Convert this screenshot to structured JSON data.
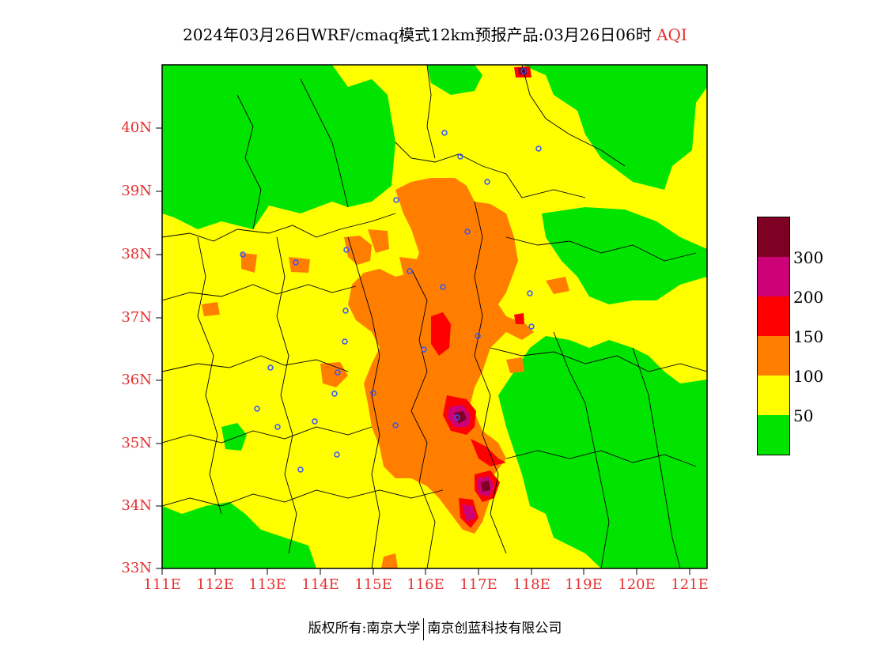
{
  "title": {
    "main": "2024年03月26日WRF/cmaq模式12km预报产品:03月26日06时",
    "variable": "AQI"
  },
  "lat_labels": [
    "40N",
    "39N",
    "38N",
    "37N",
    "36N",
    "35N",
    "34N",
    "33N"
  ],
  "lon_labels": [
    "111E",
    "112E",
    "113E",
    "114E",
    "115E",
    "116E",
    "117E",
    "118E",
    "119E",
    "120E",
    "121E"
  ],
  "legend": {
    "levels": [
      "300",
      "200",
      "150",
      "100",
      "50"
    ],
    "colors": {
      "good": "#00e400",
      "moderate": "#ffff00",
      "unhealthy_sensitive": "#ff7e00",
      "unhealthy": "#ff0000",
      "very_unhealthy": "#cc0077",
      "hazardous": "#7e0023"
    }
  },
  "footer": {
    "left": "版权所有:南京大学",
    "right": "南京创蓝科技有限公司"
  }
}
